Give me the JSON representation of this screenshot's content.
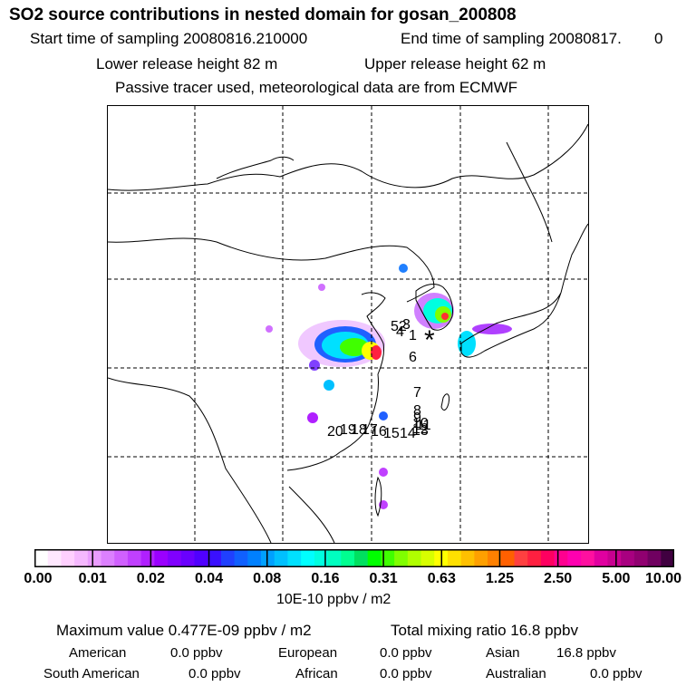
{
  "header": {
    "title": "SO2 source contributions in nested domain for gosan_200808",
    "start_label": "Start time of sampling 20080816.210000",
    "end_label": "End time of sampling 20080817.",
    "end_suffix": "0",
    "lower_height": "Lower release height   82 m",
    "upper_height": "Upper release height   62 m",
    "tracer_info": "Passive tracer used, meteorological data are from ECMWF"
  },
  "map": {
    "receptor_marker": "*",
    "trajectory_labels": [
      "52",
      "3",
      "4",
      "1",
      "6",
      "7",
      "8",
      "9",
      "10",
      "11",
      "12",
      "13",
      "14",
      "15",
      "16",
      "17",
      "18",
      "19",
      "20"
    ]
  },
  "colorbar": {
    "ticks": [
      "0.00",
      "0.01",
      "0.02",
      "0.04",
      "0.08",
      "0.16",
      "0.31",
      "0.63",
      "1.25",
      "2.50",
      "5.00",
      "10.00"
    ],
    "unit": "10E-10 ppbv / m2",
    "colors": [
      "#ffffff",
      "#ffe8ff",
      "#ffd0ff",
      "#f5b8ff",
      "#ea9cff",
      "#dc80ff",
      "#d060ff",
      "#c040ff",
      "#b020ff",
      "#9a00ff",
      "#8000ff",
      "#6a00ff",
      "#5000ff",
      "#3a10ff",
      "#2040ff",
      "#1060ff",
      "#0080ff",
      "#00a0ff",
      "#00c0ff",
      "#00e0ff",
      "#00ffff",
      "#00ffe0",
      "#00ffc0",
      "#00ff90",
      "#00e060",
      "#00ff00",
      "#40ff00",
      "#80ff00",
      "#b0ff00",
      "#d8ff00",
      "#ffff00",
      "#ffe000",
      "#ffc000",
      "#ffa000",
      "#ff8000",
      "#ff6000",
      "#ff4040",
      "#ff2040",
      "#ff0060",
      "#ff0090",
      "#ff00b0",
      "#ff10a0",
      "#e000a0",
      "#c80090",
      "#a80080",
      "#900070",
      "#700060",
      "#400040"
    ]
  },
  "stats": {
    "maximum": "Maximum value  0.477E-09 ppbv / m2",
    "total": "Total mixing ratio       16.8 ppbv",
    "regions": [
      {
        "name": "American",
        "value": "0.0 ppbv"
      },
      {
        "name": "European",
        "value": "0.0 ppbv"
      },
      {
        "name": "Asian",
        "value": "16.8 ppbv"
      },
      {
        "name": "South American",
        "value": "0.0 ppbv"
      },
      {
        "name": "African",
        "value": "0.0 ppbv"
      },
      {
        "name": "Australian",
        "value": "0.0 ppbv"
      }
    ]
  }
}
